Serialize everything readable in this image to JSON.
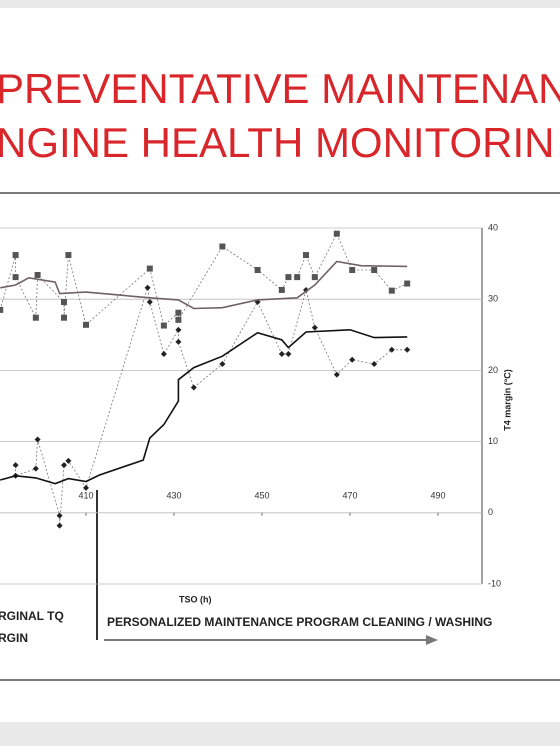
{
  "chart_data": {
    "type": "line",
    "title_lines": [
      "PREVENTATIVE MAINTENANC",
      "NGINE HEALTH MONITORIN"
    ],
    "xlabel": "TSO (h)",
    "ylabel": "T4 margin (°C)",
    "annotation": "PERSONALIZED MAINTENANCE PROGRAM CLEANING / WASHING",
    "legend_texts": [
      "RGINAL TQ",
      "RGIN"
    ],
    "xlim": [
      390,
      500
    ],
    "xticks": [
      410,
      430,
      450,
      470,
      490
    ],
    "ylim": [
      -10,
      40
    ],
    "yticks": [
      -10,
      0,
      10,
      20,
      30,
      40
    ],
    "yaxis_side": "right",
    "grid": true,
    "series": [
      {
        "color": "#555555",
        "style": "dotted",
        "marker": "square",
        "x": [
          390.5,
          394,
          394,
          398.6,
          399,
          405,
          405,
          406,
          410,
          424.5,
          427.7,
          431,
          431,
          441,
          449,
          454.5,
          456,
          458,
          460,
          462,
          467,
          470.5,
          475.5,
          479.5,
          483
        ],
        "values": [
          28.5,
          36.2,
          33.1,
          27.4,
          33.4,
          29.6,
          27.4,
          36.2,
          26.4,
          34.3,
          26.3,
          28.1,
          27.1,
          37.4,
          34.1,
          31.3,
          33.1,
          33.1,
          36.2,
          33.1,
          39.2,
          34.1,
          34.1,
          31.2,
          32.2
        ]
      },
      {
        "color": "#222222",
        "style": "dotted",
        "marker": "diamond",
        "x": [
          394,
          394,
          398.6,
          399,
          404,
          404,
          405,
          406,
          410,
          424,
          424.5,
          427.7,
          431,
          431,
          434.5,
          441,
          449,
          454.5,
          456,
          460,
          462,
          467,
          470.5,
          475.5,
          479.5,
          483
        ],
        "values": [
          6.7,
          5.2,
          6.2,
          10.3,
          -0.4,
          -1.8,
          6.7,
          7.3,
          3.5,
          31.6,
          29.6,
          22.3,
          25.7,
          24,
          17.6,
          20.9,
          29.6,
          22.3,
          22.3,
          31.3,
          26,
          19.4,
          21.5,
          20.9,
          22.9,
          22.9
        ]
      },
      {
        "color": "#6e6266",
        "style": "solid",
        "marker": "none",
        "x": [
          390.5,
          394,
          397,
          403,
          404,
          410,
          424.5,
          431,
          434.5,
          441,
          449,
          458,
          462,
          467,
          472.5,
          483
        ],
        "values": [
          31.6,
          32,
          33,
          32.4,
          30.8,
          31,
          30.2,
          29.9,
          28.7,
          28.8,
          29.9,
          30.2,
          32,
          35.3,
          34.7,
          34.6
        ]
      },
      {
        "color": "#111111",
        "style": "solid",
        "marker": "none",
        "x": [
          390.5,
          394,
          398.6,
          403,
          406,
          410,
          413,
          423,
          424.5,
          427.7,
          431,
          431,
          434.5,
          441,
          449,
          454.5,
          456,
          460,
          470,
          475.5,
          483
        ],
        "values": [
          4.6,
          5.2,
          4.9,
          4.1,
          4.8,
          4.4,
          5.3,
          7.4,
          10.5,
          12.4,
          15.7,
          18.7,
          20.4,
          22,
          25.3,
          24.3,
          23.2,
          25.4,
          25.7,
          24.6,
          24.7
        ]
      }
    ]
  }
}
